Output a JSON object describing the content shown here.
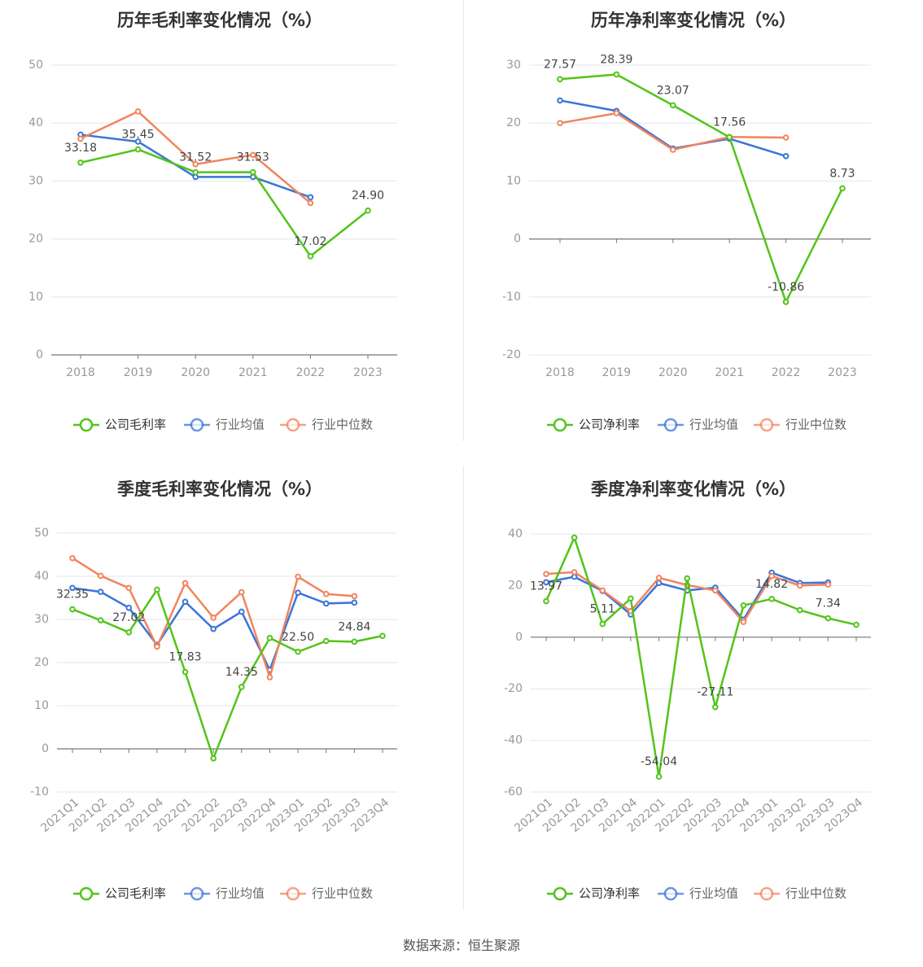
{
  "source_text": "数据来源：恒生聚源",
  "colors": {
    "company": "#52c41a",
    "avg": "#3a74d8",
    "median": "#f2845c",
    "grid": "#e3e6f0",
    "axis": "#777777"
  },
  "chart_data": [
    {
      "type": "line",
      "title": "历年毛利率变化情况（%）",
      "categories": [
        "2018",
        "2019",
        "2020",
        "2021",
        "2022",
        "2023"
      ],
      "ylim": [
        0,
        50
      ],
      "yticks": [
        0,
        10,
        20,
        30,
        40,
        50
      ],
      "grid": true,
      "legend_position": "bottom",
      "series": [
        {
          "name": "公司毛利率",
          "key": "company",
          "values": [
            33.18,
            35.45,
            31.52,
            31.53,
            17.02,
            24.9
          ],
          "labels": [
            "33.18",
            "35.45",
            "31.52",
            "31.53",
            "17.02",
            "24.90"
          ]
        },
        {
          "name": "行业均值",
          "key": "avg",
          "values": [
            38.0,
            36.8,
            30.7,
            30.7,
            27.2,
            null
          ]
        },
        {
          "name": "行业中位数",
          "key": "median",
          "values": [
            37.3,
            42.0,
            32.9,
            34.5,
            26.2,
            null
          ]
        }
      ]
    },
    {
      "type": "line",
      "title": "历年净利率变化情况（%）",
      "categories": [
        "2018",
        "2019",
        "2020",
        "2021",
        "2022",
        "2023"
      ],
      "ylim": [
        -20,
        30
      ],
      "yticks": [
        -20,
        -10,
        0,
        10,
        20,
        30
      ],
      "grid": true,
      "legend_position": "bottom",
      "series": [
        {
          "name": "公司净利率",
          "key": "company",
          "values": [
            27.57,
            28.39,
            23.07,
            17.56,
            -10.86,
            8.73
          ],
          "labels": [
            "27.57",
            "28.39",
            "23.07",
            "17.56",
            "-10.86",
            "8.73"
          ]
        },
        {
          "name": "行业均值",
          "key": "avg",
          "values": [
            23.9,
            22.1,
            15.6,
            17.3,
            14.3,
            null
          ]
        },
        {
          "name": "行业中位数",
          "key": "median",
          "values": [
            20.0,
            21.7,
            15.4,
            17.6,
            17.5,
            null
          ]
        }
      ]
    },
    {
      "type": "line",
      "title": "季度毛利率变化情况（%）",
      "categories": [
        "2021Q1",
        "2021Q2",
        "2021Q3",
        "2021Q4",
        "2022Q1",
        "2022Q2",
        "2022Q3",
        "2022Q4",
        "2023Q1",
        "2023Q2",
        "2023Q3",
        "2023Q4"
      ],
      "ylim": [
        -10,
        50
      ],
      "yticks": [
        -10,
        0,
        10,
        20,
        30,
        40,
        50
      ],
      "grid": true,
      "legend_position": "bottom",
      "series": [
        {
          "name": "公司毛利率",
          "key": "company",
          "values": [
            32.35,
            29.8,
            27.02,
            36.9,
            17.83,
            -2.2,
            14.35,
            25.7,
            22.5,
            25.0,
            24.84,
            26.2
          ],
          "labels": [
            "32.35",
            "",
            "27.02",
            "",
            "17.83",
            "",
            "14.35",
            "",
            "22.50",
            "",
            "24.84",
            ""
          ]
        },
        {
          "name": "行业均值",
          "key": "avg",
          "values": [
            37.3,
            36.4,
            32.7,
            24.1,
            34.1,
            27.8,
            31.8,
            18.3,
            36.2,
            33.7,
            33.9,
            null
          ]
        },
        {
          "name": "行业中位数",
          "key": "median",
          "values": [
            44.2,
            40.1,
            37.3,
            23.7,
            38.4,
            30.4,
            36.3,
            16.6,
            39.9,
            35.9,
            35.4,
            null
          ]
        }
      ]
    },
    {
      "type": "line",
      "title": "季度净利率变化情况（%）",
      "categories": [
        "2021Q1",
        "2021Q2",
        "2021Q3",
        "2021Q4",
        "2022Q1",
        "2022Q2",
        "2022Q3",
        "2022Q4",
        "2023Q1",
        "2023Q2",
        "2023Q3",
        "2023Q4"
      ],
      "ylim": [
        -60,
        40
      ],
      "yticks": [
        -60,
        -40,
        -20,
        0,
        20,
        40
      ],
      "grid": true,
      "legend_position": "bottom",
      "series": [
        {
          "name": "公司净利率",
          "key": "company",
          "values": [
            13.97,
            38.6,
            5.11,
            15.0,
            -54.04,
            22.8,
            -27.11,
            12.3,
            14.82,
            10.5,
            7.34,
            4.8
          ],
          "labels": [
            "13.97",
            "",
            "5.11",
            "",
            "-54.04",
            "",
            "-27.11",
            "",
            "14.82",
            "",
            "7.34",
            ""
          ]
        },
        {
          "name": "行业均值",
          "key": "avg",
          "values": [
            21.3,
            23.4,
            17.9,
            8.8,
            21.0,
            18.1,
            19.2,
            6.8,
            25.0,
            21.0,
            21.2,
            null
          ]
        },
        {
          "name": "行业中位数",
          "key": "median",
          "values": [
            24.5,
            25.2,
            18.1,
            10.1,
            23.0,
            20.2,
            18.1,
            5.9,
            23.7,
            20.0,
            20.4,
            null
          ]
        }
      ]
    }
  ]
}
